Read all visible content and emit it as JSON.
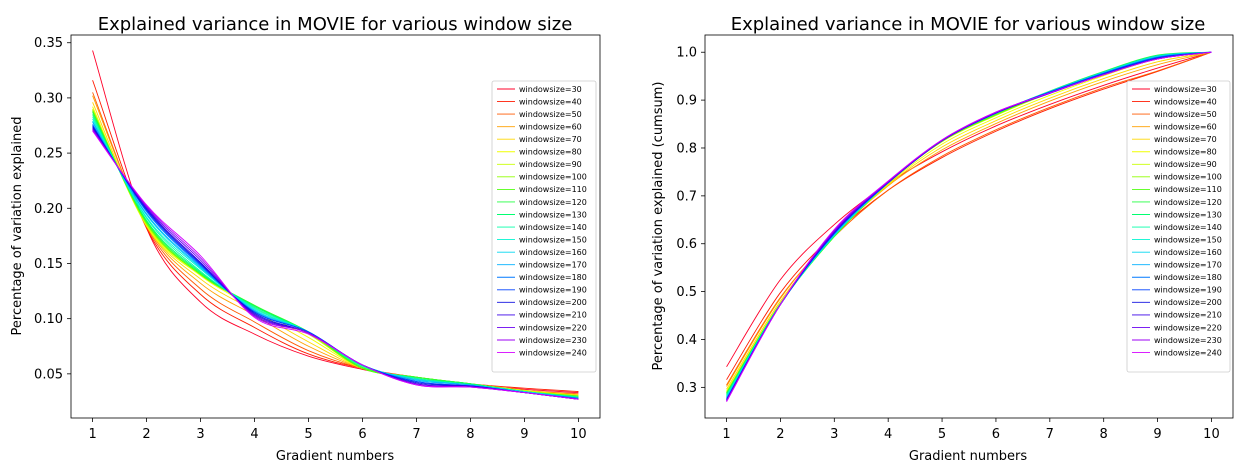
{
  "chart_data": [
    {
      "type": "line",
      "title": "Explained variance in MOVIE for various window size",
      "xlabel": "Gradient numbers",
      "ylabel": "Percentage of variation explained",
      "xlim": [
        0.6,
        10.4
      ],
      "ylim": [
        0.01,
        0.357
      ],
      "xticks": [
        1,
        2,
        3,
        4,
        5,
        6,
        7,
        8,
        9,
        10
      ],
      "yticks": [
        0.05,
        0.1,
        0.15,
        0.2,
        0.25,
        0.3,
        0.35
      ],
      "ytick_labels": [
        "0.05",
        "0.10",
        "0.15",
        "0.20",
        "0.25",
        "0.30",
        "0.35"
      ],
      "legend_position": "right",
      "grid": false,
      "x": [
        1,
        2,
        3,
        4,
        5,
        6,
        7,
        8,
        9,
        10
      ],
      "series": [
        {
          "name": "windowsize=30",
          "color": "#ff0029",
          "values": [
            0.343,
            0.182,
            0.115,
            0.086,
            0.066,
            0.054,
            0.045,
            0.04,
            0.036,
            0.033
          ]
        },
        {
          "name": "windowsize=40",
          "color": "#ff1a00",
          "values": [
            0.316,
            0.182,
            0.122,
            0.092,
            0.068,
            0.055,
            0.047,
            0.041,
            0.037,
            0.034
          ]
        },
        {
          "name": "windowsize=50",
          "color": "#ff5a00",
          "values": [
            0.305,
            0.183,
            0.127,
            0.097,
            0.071,
            0.055,
            0.047,
            0.041,
            0.035,
            0.032
          ]
        },
        {
          "name": "windowsize=60",
          "color": "#ffa000",
          "values": [
            0.302,
            0.184,
            0.132,
            0.103,
            0.075,
            0.055,
            0.047,
            0.041,
            0.035,
            0.031
          ]
        },
        {
          "name": "windowsize=70",
          "color": "#ffd700",
          "values": [
            0.296,
            0.184,
            0.136,
            0.107,
            0.079,
            0.055,
            0.047,
            0.041,
            0.035,
            0.031
          ]
        },
        {
          "name": "windowsize=80",
          "color": "#f0ff00",
          "values": [
            0.292,
            0.184,
            0.139,
            0.11,
            0.083,
            0.055,
            0.047,
            0.041,
            0.035,
            0.03
          ]
        },
        {
          "name": "windowsize=90",
          "color": "#c8ff00",
          "values": [
            0.29,
            0.185,
            0.14,
            0.112,
            0.086,
            0.055,
            0.047,
            0.041,
            0.035,
            0.03
          ]
        },
        {
          "name": "windowsize=100",
          "color": "#90ff00",
          "values": [
            0.289,
            0.186,
            0.14,
            0.112,
            0.087,
            0.055,
            0.047,
            0.041,
            0.034,
            0.03
          ]
        },
        {
          "name": "windowsize=110",
          "color": "#50ff10",
          "values": [
            0.288,
            0.187,
            0.14,
            0.112,
            0.088,
            0.055,
            0.047,
            0.041,
            0.034,
            0.03
          ]
        },
        {
          "name": "windowsize=120",
          "color": "#20ff40",
          "values": [
            0.287,
            0.188,
            0.141,
            0.112,
            0.088,
            0.056,
            0.047,
            0.041,
            0.034,
            0.029
          ]
        },
        {
          "name": "windowsize=130",
          "color": "#00ff70",
          "values": [
            0.285,
            0.189,
            0.142,
            0.111,
            0.088,
            0.057,
            0.046,
            0.041,
            0.034,
            0.029
          ]
        },
        {
          "name": "windowsize=140",
          "color": "#00ffa8",
          "values": [
            0.283,
            0.191,
            0.143,
            0.11,
            0.088,
            0.057,
            0.046,
            0.04,
            0.034,
            0.029
          ]
        },
        {
          "name": "windowsize=150",
          "color": "#00f5d0",
          "values": [
            0.281,
            0.192,
            0.145,
            0.109,
            0.088,
            0.058,
            0.045,
            0.04,
            0.034,
            0.028
          ]
        },
        {
          "name": "windowsize=160",
          "color": "#00d8f0",
          "values": [
            0.279,
            0.194,
            0.146,
            0.108,
            0.088,
            0.058,
            0.045,
            0.04,
            0.034,
            0.028
          ]
        },
        {
          "name": "windowsize=170",
          "color": "#00b0ff",
          "values": [
            0.278,
            0.195,
            0.147,
            0.107,
            0.088,
            0.058,
            0.044,
            0.04,
            0.033,
            0.028
          ]
        },
        {
          "name": "windowsize=180",
          "color": "#0078ff",
          "values": [
            0.276,
            0.197,
            0.148,
            0.106,
            0.088,
            0.058,
            0.043,
            0.039,
            0.033,
            0.028
          ]
        },
        {
          "name": "windowsize=190",
          "color": "#0040ff",
          "values": [
            0.275,
            0.198,
            0.149,
            0.106,
            0.088,
            0.058,
            0.043,
            0.039,
            0.033,
            0.027
          ]
        },
        {
          "name": "windowsize=200",
          "color": "#1010e0",
          "values": [
            0.274,
            0.199,
            0.15,
            0.105,
            0.087,
            0.058,
            0.042,
            0.039,
            0.033,
            0.027
          ]
        },
        {
          "name": "windowsize=210",
          "color": "#3a00e8",
          "values": [
            0.273,
            0.2,
            0.151,
            0.104,
            0.087,
            0.058,
            0.041,
            0.039,
            0.033,
            0.027
          ]
        },
        {
          "name": "windowsize=220",
          "color": "#6a00f0",
          "values": [
            0.272,
            0.201,
            0.153,
            0.103,
            0.087,
            0.058,
            0.041,
            0.038,
            0.033,
            0.027
          ]
        },
        {
          "name": "windowsize=230",
          "color": "#9c00f5",
          "values": [
            0.271,
            0.202,
            0.155,
            0.102,
            0.087,
            0.058,
            0.04,
            0.038,
            0.033,
            0.027
          ]
        },
        {
          "name": "windowsize=240",
          "color": "#d400ff",
          "values": [
            0.27,
            0.203,
            0.157,
            0.101,
            0.086,
            0.058,
            0.04,
            0.038,
            0.033,
            0.027
          ]
        }
      ]
    },
    {
      "type": "line",
      "title": "Explained variance in MOVIE for various window size",
      "xlabel": "Gradient numbers",
      "ylabel": "Percentage of variation explained (cumsum)",
      "xlim": [
        0.6,
        10.4
      ],
      "ylim": [
        0.236,
        1.036
      ],
      "xticks": [
        1,
        2,
        3,
        4,
        5,
        6,
        7,
        8,
        9,
        10
      ],
      "yticks": [
        0.3,
        0.4,
        0.5,
        0.6,
        0.7,
        0.8,
        0.9,
        1.0
      ],
      "ytick_labels": [
        "0.3",
        "0.4",
        "0.5",
        "0.6",
        "0.7",
        "0.8",
        "0.9",
        "1.0"
      ],
      "legend_position": "right",
      "grid": false,
      "x": [
        1,
        2,
        3,
        4,
        5,
        6,
        7,
        8,
        9,
        10
      ],
      "series": [
        {
          "name": "windowsize=30",
          "color": "#ff0029",
          "values": [
            0.343,
            0.525,
            0.64,
            0.726,
            0.792,
            0.846,
            0.891,
            0.931,
            0.967,
            1.0
          ]
        },
        {
          "name": "windowsize=40",
          "color": "#ff1a00",
          "values": [
            0.316,
            0.498,
            0.62,
            0.712,
            0.78,
            0.835,
            0.882,
            0.923,
            0.96,
            1.0
          ]
        },
        {
          "name": "windowsize=50",
          "color": "#ff5a00",
          "values": [
            0.305,
            0.488,
            0.615,
            0.712,
            0.783,
            0.838,
            0.885,
            0.926,
            0.961,
            1.0
          ]
        },
        {
          "name": "windowsize=60",
          "color": "#ffa000",
          "values": [
            0.302,
            0.486,
            0.618,
            0.721,
            0.796,
            0.851,
            0.898,
            0.939,
            0.974,
            1.0
          ]
        },
        {
          "name": "windowsize=70",
          "color": "#ffd700",
          "values": [
            0.296,
            0.48,
            0.616,
            0.723,
            0.802,
            0.857,
            0.904,
            0.945,
            0.98,
            1.0
          ]
        },
        {
          "name": "windowsize=80",
          "color": "#f0ff00",
          "values": [
            0.292,
            0.476,
            0.615,
            0.725,
            0.808,
            0.863,
            0.91,
            0.951,
            0.986,
            1.0
          ]
        },
        {
          "name": "windowsize=90",
          "color": "#c8ff00",
          "values": [
            0.29,
            0.475,
            0.615,
            0.727,
            0.813,
            0.868,
            0.915,
            0.956,
            0.991,
            1.0
          ]
        },
        {
          "name": "windowsize=100",
          "color": "#90ff00",
          "values": [
            0.289,
            0.475,
            0.615,
            0.727,
            0.814,
            0.869,
            0.916,
            0.957,
            0.991,
            1.0
          ]
        },
        {
          "name": "windowsize=110",
          "color": "#50ff10",
          "values": [
            0.288,
            0.475,
            0.615,
            0.727,
            0.815,
            0.87,
            0.917,
            0.958,
            0.992,
            1.0
          ]
        },
        {
          "name": "windowsize=120",
          "color": "#20ff40",
          "values": [
            0.287,
            0.475,
            0.616,
            0.728,
            0.816,
            0.872,
            0.919,
            0.96,
            0.994,
            1.0
          ]
        },
        {
          "name": "windowsize=130",
          "color": "#00ff70",
          "values": [
            0.285,
            0.474,
            0.616,
            0.727,
            0.815,
            0.872,
            0.918,
            0.959,
            0.993,
            1.0
          ]
        },
        {
          "name": "windowsize=140",
          "color": "#00ffa8",
          "values": [
            0.283,
            0.474,
            0.617,
            0.727,
            0.815,
            0.872,
            0.918,
            0.958,
            0.992,
            1.0
          ]
        },
        {
          "name": "windowsize=150",
          "color": "#00f5d0",
          "values": [
            0.281,
            0.473,
            0.618,
            0.727,
            0.815,
            0.873,
            0.918,
            0.958,
            0.992,
            1.0
          ]
        },
        {
          "name": "windowsize=160",
          "color": "#00d8f0",
          "values": [
            0.279,
            0.473,
            0.619,
            0.727,
            0.815,
            0.873,
            0.918,
            0.958,
            0.992,
            1.0
          ]
        },
        {
          "name": "windowsize=170",
          "color": "#00b0ff",
          "values": [
            0.278,
            0.473,
            0.62,
            0.727,
            0.815,
            0.873,
            0.917,
            0.957,
            0.99,
            1.0
          ]
        },
        {
          "name": "windowsize=180",
          "color": "#0078ff",
          "values": [
            0.276,
            0.473,
            0.621,
            0.727,
            0.815,
            0.873,
            0.916,
            0.955,
            0.988,
            1.0
          ]
        },
        {
          "name": "windowsize=190",
          "color": "#0040ff",
          "values": [
            0.275,
            0.473,
            0.622,
            0.728,
            0.816,
            0.874,
            0.917,
            0.956,
            0.989,
            1.0
          ]
        },
        {
          "name": "windowsize=200",
          "color": "#1010e0",
          "values": [
            0.274,
            0.473,
            0.623,
            0.728,
            0.815,
            0.873,
            0.915,
            0.954,
            0.987,
            1.0
          ]
        },
        {
          "name": "windowsize=210",
          "color": "#3a00e8",
          "values": [
            0.273,
            0.473,
            0.624,
            0.728,
            0.815,
            0.873,
            0.914,
            0.953,
            0.986,
            1.0
          ]
        },
        {
          "name": "windowsize=220",
          "color": "#6a00f0",
          "values": [
            0.272,
            0.473,
            0.626,
            0.729,
            0.816,
            0.874,
            0.915,
            0.953,
            0.986,
            1.0
          ]
        },
        {
          "name": "windowsize=230",
          "color": "#9c00f5",
          "values": [
            0.271,
            0.473,
            0.628,
            0.73,
            0.817,
            0.875,
            0.915,
            0.953,
            0.986,
            1.0
          ]
        },
        {
          "name": "windowsize=240",
          "color": "#d400ff",
          "values": [
            0.27,
            0.473,
            0.63,
            0.731,
            0.817,
            0.875,
            0.915,
            0.953,
            0.986,
            1.0
          ]
        }
      ]
    }
  ]
}
